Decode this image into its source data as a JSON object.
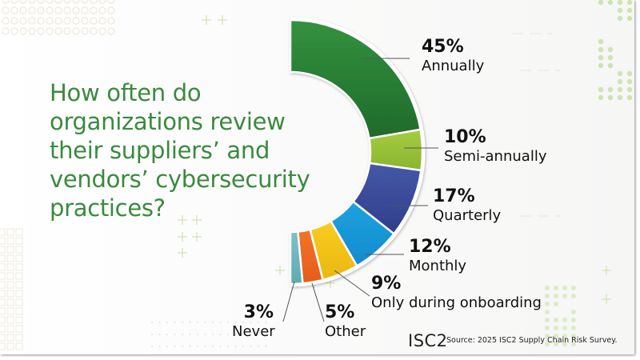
{
  "title": "How often do organizations review their suppliers’ and vendors’ cybersecurity practices?",
  "title_lines": [
    "How often do",
    "organizations review",
    "their suppliers’ and",
    "vendors’ cybersecurity",
    "practices?"
  ],
  "footer": {
    "logo": "ISC2",
    "source": "Source: 2025 ISC2 Supply Chain Risk Survey."
  },
  "colors": {
    "title": "#3a8a3e",
    "background": "#f8f8f7",
    "decor": "#cfe3b4"
  },
  "chart_data": {
    "type": "pie",
    "style": "half-donut",
    "title": "How often do organizations review their suppliers’ and vendors’ cybersecurity practices?",
    "categories": [
      "Annually",
      "Semi-annually",
      "Quarterly",
      "Monthly",
      "Only during onboarding",
      "Other",
      "Never"
    ],
    "values": [
      45,
      10,
      17,
      12,
      9,
      5,
      3
    ],
    "unit": "%",
    "colors": [
      "#2e8b3c",
      "#9bc43a",
      "#3d4fa0",
      "#1a9ad9",
      "#f2c31a",
      "#ee6a24",
      "#6fb8bf"
    ],
    "labels": [
      {
        "pct": "45%",
        "name": "Annually"
      },
      {
        "pct": "10%",
        "name": "Semi-annually"
      },
      {
        "pct": "17%",
        "name": "Quarterly"
      },
      {
        "pct": "12%",
        "name": "Monthly"
      },
      {
        "pct": "9%",
        "name": "Only during onboarding"
      },
      {
        "pct": "5%",
        "name": "Other"
      },
      {
        "pct": "3%",
        "name": "Never"
      }
    ],
    "source": "Source: 2025 ISC2 Supply Chain Risk Survey.",
    "legend": "none (direct labels with leader lines)"
  }
}
